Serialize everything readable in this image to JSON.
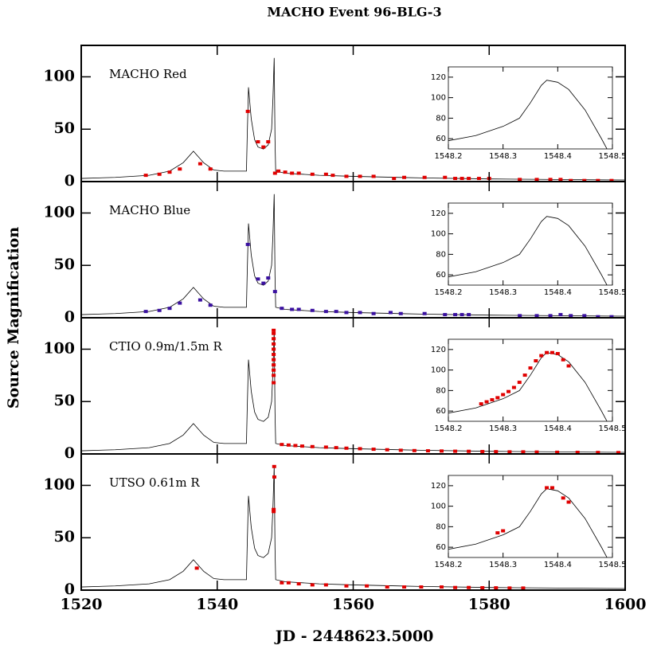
{
  "title": "MACHO Event 96-BLG-3",
  "xlabel": "JD - 2448623.5000",
  "ylabel": "Source Magnification",
  "model": {
    "x": [
      1520,
      1525,
      1530,
      1533,
      1535,
      1536.5,
      1538,
      1539.5,
      1541,
      1544,
      1544.3,
      1544.4,
      1544.6,
      1545,
      1545.5,
      1546,
      1546.8,
      1547.5,
      1548,
      1548.2,
      1548.38,
      1548.5,
      1548.6,
      1550,
      1555,
      1560,
      1570,
      1580,
      1590,
      1600
    ],
    "y": [
      3,
      4,
      6,
      10,
      18,
      29,
      18,
      11,
      10,
      10,
      10,
      40,
      90,
      60,
      40,
      33,
      31,
      35,
      50,
      80,
      118,
      40,
      10,
      8,
      6,
      5,
      3.5,
      2.5,
      2,
      1.5
    ]
  },
  "inset_model": {
    "x": [
      1548.2,
      1548.25,
      1548.3,
      1548.33,
      1548.35,
      1548.37,
      1548.38,
      1548.4,
      1548.42,
      1548.45,
      1548.48,
      1548.49
    ],
    "y": [
      58,
      63,
      72,
      80,
      95,
      112,
      117,
      115,
      108,
      88,
      60,
      50
    ]
  },
  "chart_data": [
    {
      "type": "scatter",
      "label": "MACHO Red",
      "color": "#e00000",
      "xlim": [
        1520,
        1600
      ],
      "ylim": [
        0,
        130
      ],
      "xticks": [
        1520,
        1540,
        1560,
        1580,
        1600
      ],
      "yticks": [
        0,
        50,
        100
      ],
      "x": [
        1529.5,
        1531.5,
        1533,
        1534.5,
        1537.5,
        1539,
        1544.5,
        1546,
        1546.8,
        1547.5,
        1548.5,
        1549,
        1550,
        1551,
        1552,
        1554,
        1556,
        1557,
        1559,
        1561,
        1563,
        1566,
        1567.5,
        1570.5,
        1573.5,
        1575,
        1576,
        1577,
        1578.5,
        1580,
        1584.5,
        1587,
        1589,
        1590.5,
        1592,
        1594,
        1596,
        1598
      ],
      "y": [
        6,
        7,
        9,
        12,
        17,
        12,
        67,
        38,
        33,
        38,
        8,
        10,
        9,
        8,
        8,
        7,
        7,
        6,
        5,
        5,
        5,
        3,
        4,
        4,
        4,
        3,
        3,
        3,
        3,
        3,
        2,
        2,
        2,
        2,
        1,
        1,
        1,
        1
      ],
      "inset": {
        "xlim": [
          1548.2,
          1548.5
        ],
        "ylim": [
          50,
          130
        ],
        "xticks": [
          1548.2,
          1548.3,
          1548.4,
          1548.5
        ],
        "yticks": [
          60,
          80,
          100,
          120
        ],
        "x": [],
        "y": []
      }
    },
    {
      "type": "scatter",
      "label": "MACHO Blue",
      "color": "#3a10a0",
      "xlim": [
        1520,
        1600
      ],
      "ylim": [
        0,
        130
      ],
      "xticks": [
        1520,
        1540,
        1560,
        1580,
        1600
      ],
      "yticks": [
        0,
        50,
        100
      ],
      "x": [
        1529.5,
        1531.5,
        1533,
        1534.5,
        1537.5,
        1539,
        1544.5,
        1546,
        1546.8,
        1547.5,
        1548.5,
        1549.5,
        1551,
        1552,
        1554,
        1556,
        1557.5,
        1559,
        1561,
        1563,
        1565.5,
        1567,
        1570.5,
        1573.5,
        1575,
        1576,
        1577,
        1584.5,
        1587,
        1589,
        1590.5,
        1592,
        1594,
        1596,
        1598
      ],
      "y": [
        6,
        7,
        9,
        14,
        17,
        12,
        70,
        37,
        33,
        38,
        25,
        9,
        8,
        8,
        7,
        6,
        6,
        5,
        5,
        4,
        5,
        4,
        4,
        3,
        3,
        3,
        3,
        2,
        2,
        2,
        3,
        2,
        2,
        1,
        1
      ],
      "inset": {
        "xlim": [
          1548.2,
          1548.5
        ],
        "ylim": [
          50,
          130
        ],
        "xticks": [
          1548.2,
          1548.3,
          1548.4,
          1548.5
        ],
        "yticks": [
          60,
          80,
          100,
          120
        ],
        "x": [],
        "y": []
      }
    },
    {
      "type": "scatter",
      "label": "CTIO 0.9m/1.5m R",
      "color": "#e00000",
      "xlim": [
        1520,
        1600
      ],
      "ylim": [
        0,
        130
      ],
      "xticks": [
        1520,
        1540,
        1560,
        1580,
        1600
      ],
      "yticks": [
        0,
        50,
        100
      ],
      "x": [
        1548.3,
        1548.3,
        1548.3,
        1548.3,
        1548.3,
        1548.3,
        1548.3,
        1548.3,
        1548.3,
        1548.3,
        1548.3,
        1549.5,
        1550.5,
        1551.5,
        1552.5,
        1554,
        1556,
        1557.5,
        1559,
        1561,
        1563,
        1565,
        1567,
        1569,
        1571,
        1573,
        1575,
        1577,
        1579,
        1581,
        1583,
        1585,
        1587,
        1590,
        1593,
        1596,
        1599
      ],
      "y": [
        68,
        75,
        80,
        85,
        90,
        95,
        100,
        105,
        110,
        115,
        118,
        9,
        8.5,
        8,
        7.5,
        7,
        6.5,
        6,
        5.5,
        5,
        4.5,
        4,
        3.5,
        3.2,
        3,
        2.8,
        2.6,
        2.5,
        2.3,
        2.2,
        2,
        2,
        1.8,
        1.6,
        1.5,
        1.4,
        1.3
      ],
      "inset": {
        "xlim": [
          1548.2,
          1548.5
        ],
        "ylim": [
          50,
          130
        ],
        "xticks": [
          1548.2,
          1548.3,
          1548.4,
          1548.5
        ],
        "yticks": [
          60,
          80,
          100,
          120
        ],
        "x": [
          1548.26,
          1548.27,
          1548.28,
          1548.29,
          1548.3,
          1548.31,
          1548.32,
          1548.33,
          1548.34,
          1548.35,
          1548.36,
          1548.37,
          1548.38,
          1548.39,
          1548.4,
          1548.41,
          1548.42
        ],
        "y": [
          67,
          69,
          71,
          73,
          76,
          79,
          83,
          88,
          95,
          102,
          109,
          114,
          117,
          117,
          116,
          110,
          104
        ]
      }
    },
    {
      "type": "scatter",
      "label": "UTSO 0.61m R",
      "color": "#e00000",
      "xlim": [
        1520,
        1600
      ],
      "ylim": [
        0,
        130
      ],
      "xticks": [
        1520,
        1540,
        1560,
        1580,
        1600
      ],
      "yticks": [
        0,
        50,
        100
      ],
      "x": [
        1537,
        1548.3,
        1548.3,
        1548.38,
        1548.4,
        1549.5,
        1550.5,
        1552,
        1554,
        1556,
        1559,
        1562,
        1565,
        1567.5,
        1570,
        1573,
        1575,
        1577,
        1579,
        1581,
        1583,
        1585
      ],
      "y": [
        21,
        75,
        77,
        118,
        108,
        7,
        7,
        6,
        5,
        5,
        4,
        4,
        3,
        3,
        3,
        3,
        2.5,
        2.5,
        2.3,
        2.2,
        2,
        2
      ],
      "inset": {
        "xlim": [
          1548.2,
          1548.5
        ],
        "ylim": [
          50,
          130
        ],
        "xticks": [
          1548.2,
          1548.3,
          1548.4,
          1548.5
        ],
        "yticks": [
          60,
          80,
          100,
          120
        ],
        "x": [
          1548.29,
          1548.3,
          1548.38,
          1548.39,
          1548.41,
          1548.42
        ],
        "y": [
          74,
          76,
          118,
          118,
          108,
          104
        ]
      }
    }
  ]
}
